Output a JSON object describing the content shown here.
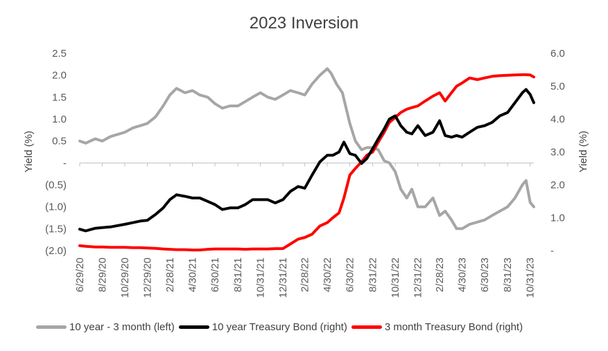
{
  "chart_data": {
    "type": "line",
    "title": "2023 Inversion",
    "y_left_label": "Yield (%)",
    "y_right_label": "Yield (%)",
    "y_left_range": [
      -2.0,
      2.5
    ],
    "y_right_range": [
      0,
      6.0
    ],
    "y_left_ticks": [
      "2.5",
      "2.0",
      "1.5",
      "1.0",
      "0.5",
      "-",
      "(0.5)",
      "(1.0)",
      "(1.5)",
      "(2.0)"
    ],
    "y_right_ticks": [
      "6.0",
      "5.0",
      "4.0",
      "3.0",
      "2.0",
      "1.0",
      "-"
    ],
    "x_ticks": [
      "6/29/20",
      "8/29/20",
      "10/29/20",
      "12/29/20",
      "2/28/21",
      "4/30/21",
      "6/30/21",
      "8/31/21",
      "10/31/21",
      "12/31/21",
      "2/28/22",
      "4/30/22",
      "6/30/22",
      "8/31/22",
      "10/31/22",
      "12/31/22",
      "2/28/23",
      "4/30/23",
      "6/30/23",
      "8/31/23",
      "10/31/23"
    ],
    "x_range": [
      "6/29/20",
      "11/10/23"
    ],
    "grid": false,
    "legend_position": "bottom",
    "series": [
      {
        "name": "10 year - 3 month (left)",
        "axis": "left",
        "color": "#a6a6a6",
        "x": [
          "6/29/20",
          "7/15/20",
          "8/10/20",
          "8/29/20",
          "9/20/20",
          "10/29/20",
          "11/20/20",
          "12/10/20",
          "12/29/20",
          "1/20/21",
          "2/10/21",
          "2/28/21",
          "3/18/21",
          "4/10/21",
          "4/30/21",
          "5/20/21",
          "6/10/21",
          "6/30/21",
          "7/20/21",
          "8/10/21",
          "8/31/21",
          "9/20/21",
          "10/10/21",
          "10/31/21",
          "11/20/21",
          "12/10/21",
          "12/31/21",
          "1/20/22",
          "2/10/22",
          "2/28/22",
          "3/20/22",
          "4/10/22",
          "4/30/22",
          "5/10/22",
          "5/25/22",
          "6/10/22",
          "6/30/22",
          "7/15/22",
          "8/1/22",
          "8/15/22",
          "8/31/22",
          "9/15/22",
          "10/1/22",
          "10/15/22",
          "10/31/22",
          "11/15/22",
          "12/1/22",
          "12/15/22",
          "12/31/22",
          "1/20/23",
          "2/10/23",
          "2/28/23",
          "3/15/23",
          "4/1/23",
          "4/15/23",
          "4/30/23",
          "5/20/23",
          "6/10/23",
          "6/30/23",
          "7/20/23",
          "8/10/23",
          "8/31/23",
          "9/20/23",
          "10/10/23",
          "10/20/23",
          "10/31/23",
          "11/10/23"
        ],
        "values": [
          0.5,
          0.45,
          0.55,
          0.5,
          0.6,
          0.7,
          0.8,
          0.85,
          0.9,
          1.05,
          1.3,
          1.55,
          1.7,
          1.6,
          1.65,
          1.55,
          1.5,
          1.35,
          1.25,
          1.3,
          1.3,
          1.4,
          1.5,
          1.6,
          1.5,
          1.45,
          1.55,
          1.65,
          1.6,
          1.55,
          1.8,
          2.0,
          2.15,
          2.05,
          1.8,
          1.6,
          0.9,
          0.5,
          0.3,
          0.35,
          0.35,
          0.3,
          0.05,
          0.0,
          -0.2,
          -0.6,
          -0.8,
          -0.6,
          -1.0,
          -1.0,
          -0.8,
          -1.2,
          -1.1,
          -1.3,
          -1.5,
          -1.5,
          -1.4,
          -1.35,
          -1.3,
          -1.2,
          -1.1,
          -1.0,
          -0.8,
          -0.5,
          -0.4,
          -0.9,
          -1.0
        ]
      },
      {
        "name": "10 year Treasury Bond (right)",
        "axis": "right",
        "color": "#000000",
        "x": [
          "6/29/20",
          "7/15/20",
          "8/10/20",
          "8/29/20",
          "9/20/20",
          "10/29/20",
          "11/20/20",
          "12/10/20",
          "12/29/20",
          "1/20/21",
          "2/10/21",
          "2/28/21",
          "3/18/21",
          "4/10/21",
          "4/30/21",
          "5/20/21",
          "6/10/21",
          "6/30/21",
          "7/20/21",
          "8/10/21",
          "8/31/21",
          "9/20/21",
          "10/10/21",
          "10/31/21",
          "11/20/21",
          "12/10/21",
          "12/31/21",
          "1/20/22",
          "2/10/22",
          "2/28/22",
          "3/20/22",
          "4/10/22",
          "4/30/22",
          "5/15/22",
          "6/1/22",
          "6/14/22",
          "6/30/22",
          "7/15/22",
          "8/1/22",
          "8/15/22",
          "8/31/22",
          "9/15/22",
          "10/1/22",
          "10/15/22",
          "10/31/22",
          "11/15/22",
          "12/1/22",
          "12/15/22",
          "12/31/22",
          "1/20/23",
          "2/10/23",
          "2/28/23",
          "3/15/23",
          "4/1/23",
          "4/15/23",
          "4/30/23",
          "5/20/23",
          "6/10/23",
          "6/30/23",
          "7/20/23",
          "8/10/23",
          "8/31/23",
          "9/20/23",
          "10/10/23",
          "10/20/23",
          "10/31/23",
          "11/10/23"
        ],
        "values": [
          0.65,
          0.6,
          0.68,
          0.7,
          0.72,
          0.8,
          0.85,
          0.9,
          0.92,
          1.1,
          1.3,
          1.55,
          1.7,
          1.65,
          1.6,
          1.6,
          1.5,
          1.4,
          1.25,
          1.3,
          1.3,
          1.4,
          1.55,
          1.55,
          1.55,
          1.45,
          1.55,
          1.8,
          1.95,
          1.9,
          2.3,
          2.7,
          2.9,
          2.9,
          3.0,
          3.3,
          2.95,
          2.9,
          2.65,
          2.8,
          3.1,
          3.4,
          3.7,
          4.0,
          4.1,
          3.8,
          3.6,
          3.55,
          3.8,
          3.5,
          3.6,
          3.95,
          3.5,
          3.45,
          3.5,
          3.45,
          3.6,
          3.75,
          3.8,
          3.9,
          4.1,
          4.2,
          4.5,
          4.8,
          4.9,
          4.75,
          4.5
        ]
      },
      {
        "name": "3 month Treasury Bond (right)",
        "axis": "right",
        "color": "#ff0000",
        "x": [
          "6/29/20",
          "7/15/20",
          "8/10/20",
          "8/29/20",
          "9/20/20",
          "10/29/20",
          "11/20/20",
          "12/10/20",
          "12/29/20",
          "1/20/21",
          "2/10/21",
          "2/28/21",
          "3/18/21",
          "4/10/21",
          "4/30/21",
          "5/20/21",
          "6/10/21",
          "6/30/21",
          "7/20/21",
          "8/10/21",
          "8/31/21",
          "9/20/21",
          "10/10/21",
          "10/31/21",
          "11/20/21",
          "12/10/21",
          "12/31/21",
          "1/20/22",
          "2/10/22",
          "2/28/22",
          "3/20/22",
          "4/10/22",
          "4/30/22",
          "5/15/22",
          "6/1/22",
          "6/14/22",
          "6/30/22",
          "7/15/22",
          "8/1/22",
          "8/15/22",
          "8/31/22",
          "9/15/22",
          "10/1/22",
          "10/15/22",
          "10/31/22",
          "11/15/22",
          "12/1/22",
          "12/15/22",
          "12/31/22",
          "1/20/23",
          "2/10/23",
          "2/28/23",
          "3/15/23",
          "4/1/23",
          "4/15/23",
          "4/30/23",
          "5/20/23",
          "6/10/23",
          "6/30/23",
          "7/20/23",
          "8/10/23",
          "8/31/23",
          "9/20/23",
          "10/10/23",
          "10/20/23",
          "10/31/23",
          "11/10/23"
        ],
        "values": [
          0.15,
          0.13,
          0.11,
          0.11,
          0.1,
          0.1,
          0.09,
          0.09,
          0.08,
          0.07,
          0.05,
          0.04,
          0.03,
          0.03,
          0.02,
          0.02,
          0.04,
          0.05,
          0.05,
          0.05,
          0.05,
          0.04,
          0.05,
          0.05,
          0.05,
          0.06,
          0.06,
          0.2,
          0.35,
          0.4,
          0.5,
          0.75,
          0.85,
          1.0,
          1.15,
          1.6,
          2.3,
          2.5,
          2.7,
          2.9,
          3.0,
          3.3,
          3.6,
          3.9,
          4.05,
          4.2,
          4.3,
          4.35,
          4.4,
          4.55,
          4.7,
          4.8,
          4.55,
          4.8,
          5.0,
          5.1,
          5.25,
          5.2,
          5.25,
          5.3,
          5.32,
          5.33,
          5.34,
          5.35,
          5.35,
          5.34,
          5.28
        ]
      }
    ]
  }
}
